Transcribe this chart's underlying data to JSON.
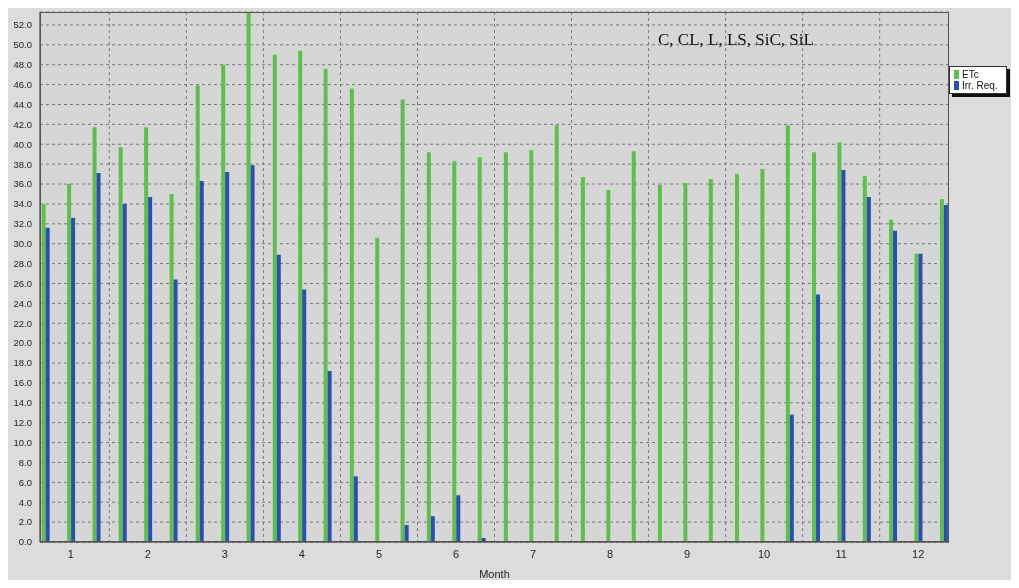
{
  "chart_data": {
    "type": "bar",
    "title": "C, CL, L, LS, SiC, SiL",
    "xlabel": "Month",
    "x": [
      0.67,
      1,
      1.33,
      1.67,
      2,
      2.33,
      2.67,
      3,
      3.33,
      3.67,
      4,
      4.33,
      4.67,
      5,
      5.33,
      5.67,
      6,
      6.33,
      6.67,
      7,
      7.33,
      7.67,
      8,
      8.33,
      8.67,
      9,
      9.33,
      9.67,
      10,
      10.33,
      10.67,
      11,
      11.33,
      11.67,
      12,
      12.33
    ],
    "series": [
      {
        "name": "ETc",
        "color": "#5cc04a",
        "values": [
          34.0,
          36.0,
          41.7,
          39.7,
          41.7,
          35.0,
          45.9,
          48.0,
          53.3,
          49.0,
          49.4,
          47.6,
          45.6,
          30.6,
          44.5,
          39.2,
          38.3,
          38.7,
          39.2,
          39.4,
          41.9,
          36.7,
          35.4,
          39.3,
          35.9,
          36.1,
          36.5,
          37.0,
          37.5,
          41.9,
          39.2,
          40.2,
          36.8,
          32.4,
          29.0,
          34.5
        ]
      },
      {
        "name": "Irr. Req.",
        "color": "#2a4fb0",
        "values": [
          31.6,
          32.6,
          37.1,
          34.0,
          34.7,
          26.4,
          36.3,
          37.2,
          37.9,
          28.9,
          25.4,
          17.2,
          6.6,
          0,
          1.7,
          2.6,
          4.7,
          0.4,
          0,
          0,
          0,
          0,
          0,
          0,
          0,
          0,
          0,
          0,
          0,
          12.8,
          24.9,
          37.4,
          34.7,
          31.3,
          29.0,
          33.9
        ]
      }
    ],
    "xlim": [
      0.6,
      12.4
    ],
    "xticks": [
      1,
      {
        "value": 1.5,
        "label": null
      },
      2,
      {
        "value": 2.5,
        "label": null
      },
      3,
      {
        "value": 3.5,
        "label": null
      },
      4,
      {
        "value": 4.5,
        "label": null
      },
      5,
      {
        "value": 5.5,
        "label": null
      },
      6,
      {
        "value": 6.5,
        "label": null
      },
      7,
      {
        "value": 7.5,
        "label": null
      },
      8,
      {
        "value": 8.5,
        "label": null
      },
      9,
      {
        "value": 9.5,
        "label": null
      },
      10,
      {
        "value": 10.5,
        "label": null
      },
      11,
      {
        "value": 11.5,
        "label": null
      },
      12
    ],
    "ylim": [
      0,
      53.3
    ],
    "yticks": [
      {
        "value": 0,
        "label": "0.0"
      },
      {
        "value": 2,
        "label": "2.0"
      },
      {
        "value": 4,
        "label": "4.0"
      },
      {
        "value": 6,
        "label": "6.0"
      },
      {
        "value": 8,
        "label": "8.0"
      },
      {
        "value": 10,
        "label": "10.0"
      },
      {
        "value": 12,
        "label": "12.0"
      },
      {
        "value": 14,
        "label": "14.0"
      },
      {
        "value": 16,
        "label": "16.0"
      },
      {
        "value": 18,
        "label": "18.0"
      },
      {
        "value": 20,
        "label": "20.0"
      },
      {
        "value": 22,
        "label": "22.0"
      },
      {
        "value": 24,
        "label": "24.0"
      },
      {
        "value": 26,
        "label": "26.0"
      },
      {
        "value": 28,
        "label": "28.0"
      },
      {
        "value": 30,
        "label": "30.0"
      },
      {
        "value": 32,
        "label": "32.0"
      },
      {
        "value": 34,
        "label": "34.0"
      },
      {
        "value": 36,
        "label": "36.0"
      },
      {
        "value": 38,
        "label": "38.0"
      },
      {
        "value": 40,
        "label": "40.0"
      },
      {
        "value": 42,
        "label": "42.0"
      },
      {
        "value": 44,
        "label": "44.0"
      },
      {
        "value": 46,
        "label": "46.0"
      },
      {
        "value": 48,
        "label": "48.0"
      },
      {
        "value": 50,
        "label": "50.0"
      },
      {
        "value": 52,
        "label": "52.0"
      }
    ],
    "grid": true,
    "legend": "right"
  }
}
